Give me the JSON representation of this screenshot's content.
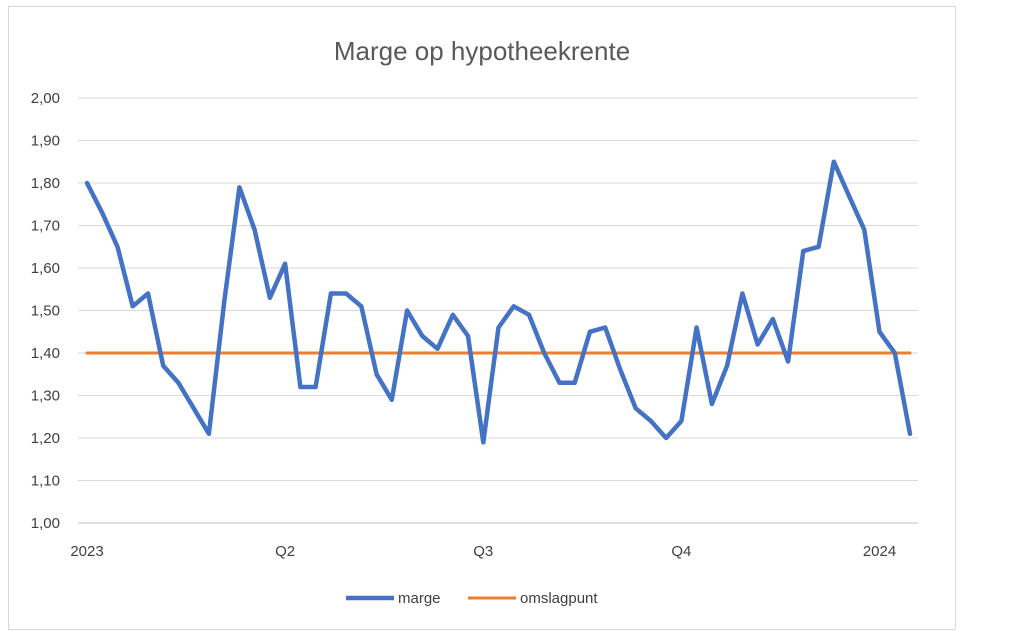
{
  "chart_data": {
    "type": "line",
    "title": "Marge op hypotheekrente",
    "xlabel": "",
    "ylabel": "",
    "ylim": [
      1.0,
      2.0
    ],
    "y_ticks": [
      "1,00",
      "1,10",
      "1,20",
      "1,30",
      "1,40",
      "1,50",
      "1,60",
      "1,70",
      "1,80",
      "1,90",
      "2,00"
    ],
    "x_tick_labels": [
      {
        "label": "2023",
        "index": 0
      },
      {
        "label": "Q2",
        "index": 13
      },
      {
        "label": "Q3",
        "index": 26
      },
      {
        "label": "Q4",
        "index": 39
      },
      {
        "label": "2024",
        "index": 52
      }
    ],
    "grid": true,
    "legend_position": "bottom",
    "series": [
      {
        "name": "marge",
        "color": "#4472c4",
        "values": [
          1.8,
          1.73,
          1.65,
          1.51,
          1.54,
          1.37,
          1.33,
          1.27,
          1.21,
          1.52,
          1.79,
          1.69,
          1.53,
          1.61,
          1.32,
          1.32,
          1.54,
          1.54,
          1.51,
          1.35,
          1.29,
          1.5,
          1.44,
          1.41,
          1.49,
          1.44,
          1.19,
          1.46,
          1.51,
          1.49,
          1.4,
          1.33,
          1.33,
          1.45,
          1.46,
          1.36,
          1.27,
          1.24,
          1.2,
          1.24,
          1.46,
          1.28,
          1.37,
          1.54,
          1.42,
          1.48,
          1.38,
          1.64,
          1.65,
          1.85,
          1.77,
          1.69,
          1.45,
          1.4,
          1.21
        ]
      },
      {
        "name": "omslagpunt",
        "color": "#ed7d31",
        "values": [
          1.4,
          1.4,
          1.4,
          1.4,
          1.4,
          1.4,
          1.4,
          1.4,
          1.4,
          1.4,
          1.4,
          1.4,
          1.4,
          1.4,
          1.4,
          1.4,
          1.4,
          1.4,
          1.4,
          1.4,
          1.4,
          1.4,
          1.4,
          1.4,
          1.4,
          1.4,
          1.4,
          1.4,
          1.4,
          1.4,
          1.4,
          1.4,
          1.4,
          1.4,
          1.4,
          1.4,
          1.4,
          1.4,
          1.4,
          1.4,
          1.4,
          1.4,
          1.4,
          1.4,
          1.4,
          1.4,
          1.4,
          1.4,
          1.4,
          1.4,
          1.4,
          1.4,
          1.4,
          1.4,
          1.4
        ]
      }
    ]
  }
}
